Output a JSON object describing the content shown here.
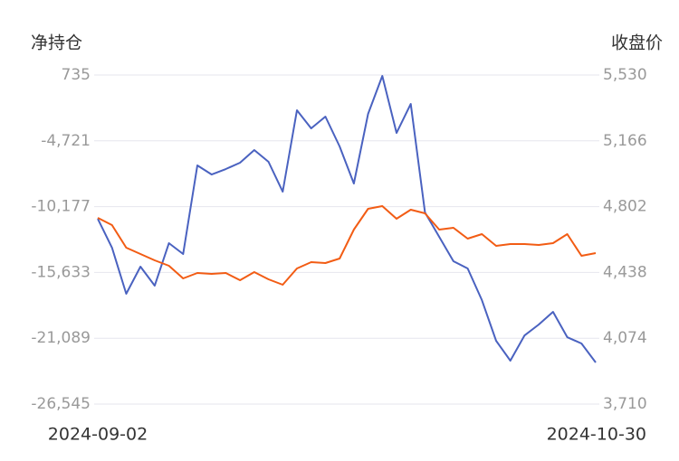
{
  "chart_data": {
    "type": "line",
    "y_title": "净持仓",
    "y2_title": "收盘价",
    "categories": [
      "2024-09-02",
      null,
      null,
      null,
      null,
      null,
      null,
      null,
      null,
      null,
      null,
      null,
      null,
      null,
      null,
      null,
      null,
      null,
      null,
      null,
      null,
      null,
      null,
      null,
      null,
      null,
      null,
      null,
      null,
      null,
      null,
      null,
      null,
      null,
      null,
      "2024-10-30"
    ],
    "series": [
      {
        "color": "#4a62c0",
        "axis": "y",
        "values": [
          -11182,
          -13580,
          -17403,
          -15154,
          -16728,
          -13206,
          -14105,
          -6760,
          -7510,
          -7060,
          -6535,
          -5486,
          -6460,
          -8934,
          -2188,
          -3687,
          -2713,
          -5186,
          -8259,
          -2488,
          660,
          -4062,
          -1663,
          -10657,
          -12681,
          -14705,
          -15304,
          -17928,
          -21300,
          -22949,
          -20851,
          -19951,
          -18902,
          -21001,
          -21525,
          -23099
        ]
      },
      {
        "color": "#f25c14",
        "axis": "y2",
        "values": [
          4740,
          4700,
          4575,
          4540,
          4505,
          4475,
          4405,
          4435,
          4430,
          4435,
          4395,
          4440,
          4400,
          4370,
          4460,
          4495,
          4490,
          4515,
          4675,
          4790,
          4805,
          4735,
          4785,
          4765,
          4675,
          4685,
          4625,
          4650,
          4585,
          4595,
          4595,
          4590,
          4600,
          4650,
          4530,
          4545
        ]
      }
    ],
    "ylim": [
      -26545,
      735
    ],
    "yticks": [
      735,
      {
        "value": -4721,
        "label": "-4,721"
      },
      {
        "value": -10177,
        "label": "-10,177"
      },
      {
        "value": -15633,
        "label": "-15,633"
      },
      {
        "value": -21089,
        "label": "-21,089"
      },
      {
        "value": -26545,
        "label": "-26,545"
      }
    ],
    "y2lim": [
      3710,
      5530
    ],
    "y2ticks": [
      {
        "value": 3710,
        "label": "3,710"
      },
      {
        "value": 4074,
        "label": "4,074"
      },
      {
        "value": 4438,
        "label": "4,438"
      },
      {
        "value": 4802,
        "label": "4,802"
      },
      {
        "value": 5166,
        "label": "5,166"
      },
      {
        "value": 5530,
        "label": "5,530"
      }
    ],
    "grid": true
  }
}
